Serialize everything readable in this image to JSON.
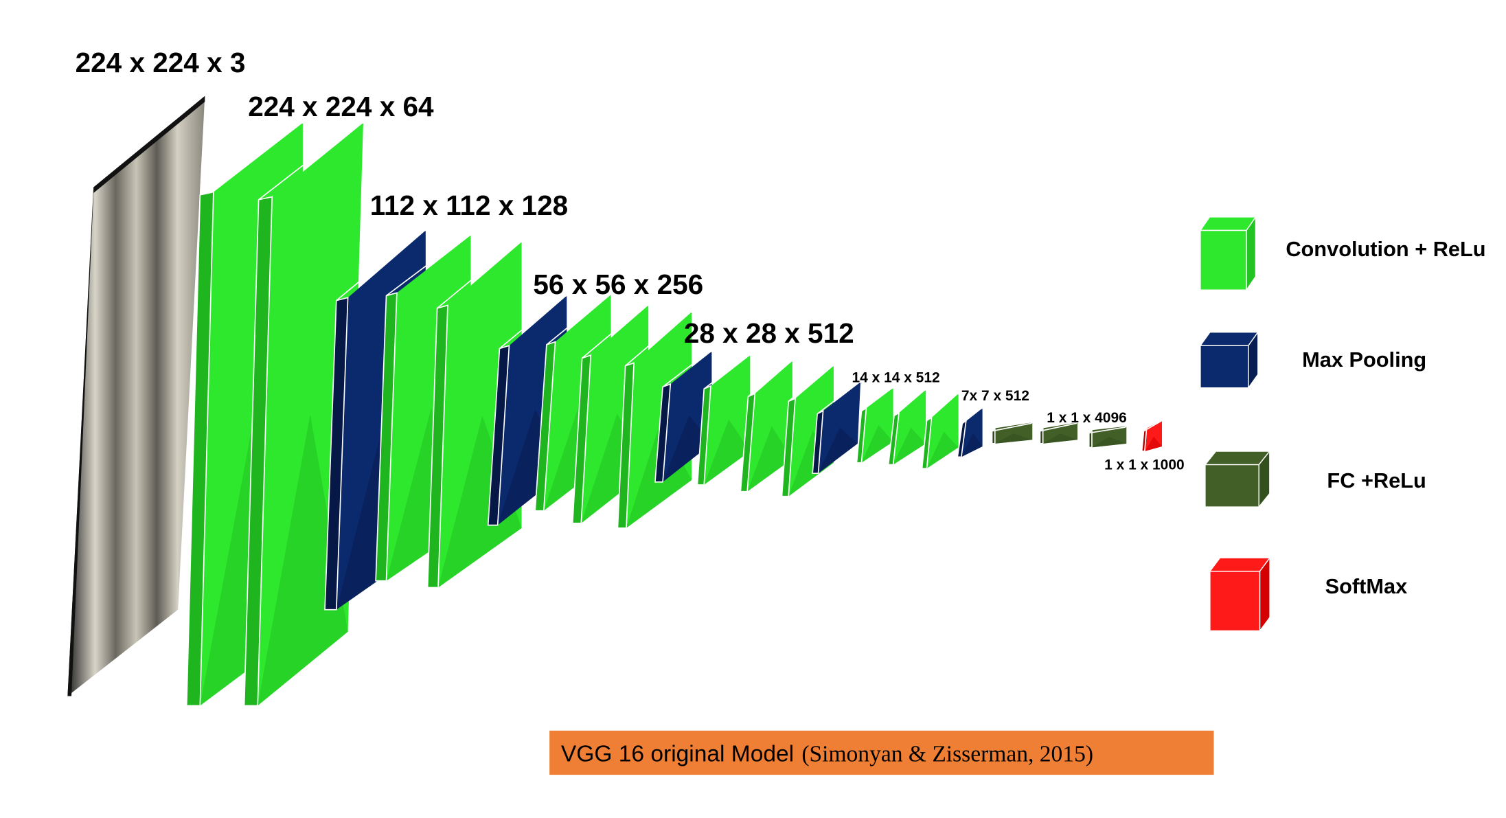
{
  "labels": [
    "224 x 224 x 3",
    "224 x 224 x 64",
    "112 x 112 x 128",
    "56 x 56 x 256",
    "28 x 28 x 512",
    "14 x 14 x 512",
    "7x 7 x 512",
    "1 x 1 x 4096",
    "1 x 1 x 1000"
  ],
  "legend": [
    "Convolution + ReLu",
    "Max Pooling",
    "FC +ReLu",
    "SoftMax"
  ],
  "caption": {
    "model": "VGG 16 original Model",
    "citation": "(Simonyan & Zisserman, 2015)"
  }
}
